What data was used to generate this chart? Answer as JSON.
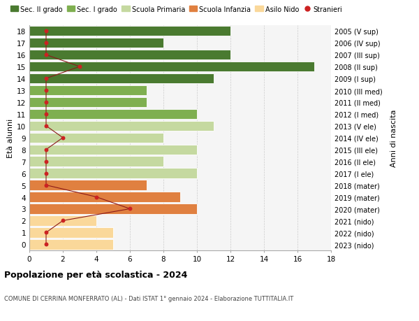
{
  "ages": [
    0,
    1,
    2,
    3,
    4,
    5,
    6,
    7,
    8,
    9,
    10,
    11,
    12,
    13,
    14,
    15,
    16,
    17,
    18
  ],
  "right_labels": [
    "2023 (nido)",
    "2022 (nido)",
    "2021 (nido)",
    "2020 (mater)",
    "2019 (mater)",
    "2018 (mater)",
    "2017 (I ele)",
    "2016 (II ele)",
    "2015 (III ele)",
    "2014 (IV ele)",
    "2013 (V ele)",
    "2012 (I med)",
    "2011 (II med)",
    "2010 (III med)",
    "2009 (I sup)",
    "2008 (II sup)",
    "2007 (III sup)",
    "2006 (IV sup)",
    "2005 (V sup)"
  ],
  "bar_values": [
    5,
    5,
    4,
    10,
    9,
    7,
    10,
    8,
    10,
    8,
    11,
    10,
    7,
    7,
    11,
    17,
    12,
    8,
    12
  ],
  "bar_colors": [
    "#FAD89A",
    "#FAD89A",
    "#FAD89A",
    "#E08040",
    "#E08040",
    "#E08040",
    "#C5D9A0",
    "#C5D9A0",
    "#C5D9A0",
    "#C5D9A0",
    "#C5D9A0",
    "#7FAF50",
    "#7FAF50",
    "#7FAF50",
    "#4A7A30",
    "#4A7A30",
    "#4A7A30",
    "#4A7A30",
    "#4A7A30"
  ],
  "stranieri_values": [
    1,
    1,
    2,
    6,
    4,
    1,
    1,
    1,
    1,
    2,
    1,
    1,
    1,
    1,
    1,
    3,
    1,
    1,
    1
  ],
  "legend_labels": [
    "Sec. II grado",
    "Sec. I grado",
    "Scuola Primaria",
    "Scuola Infanzia",
    "Asilo Nido",
    "Stranieri"
  ],
  "legend_colors": [
    "#4A7A30",
    "#7FAF50",
    "#C5D9A0",
    "#E08040",
    "#FAD89A",
    "#CC2222"
  ],
  "title": "Popolazione per età scolastica - 2024",
  "subtitle": "COMUNE DI CERRINA MONFERRATO (AL) - Dati ISTAT 1° gennaio 2024 - Elaborazione TUTTITALIA.IT",
  "ylabel_left": "Età alunni",
  "ylabel_right": "Anni di nascita",
  "xlim": [
    0,
    18
  ],
  "background_color": "#FFFFFF",
  "plot_bg_color": "#F5F5F5",
  "grid_color": "#CCCCCC"
}
